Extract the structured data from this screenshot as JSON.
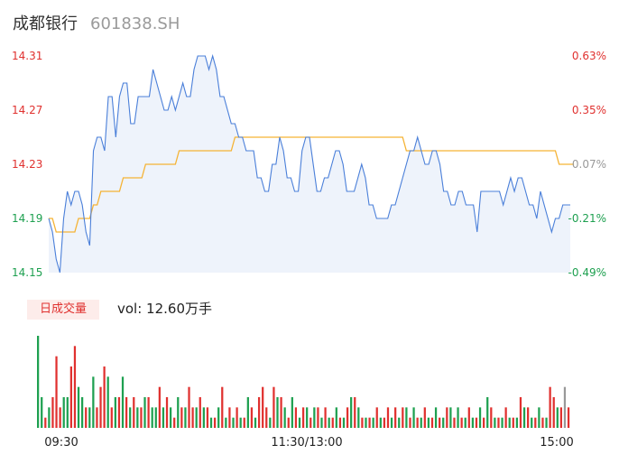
{
  "header": {
    "name": "成都银行",
    "code": "601838.SH"
  },
  "volume_panel": {
    "badge": "日成交量",
    "label": "vol: 12.60万手"
  },
  "colors": {
    "price": "#4a7fd9",
    "avg": "#f5b335",
    "up": "#e0312f",
    "down": "#1ea050",
    "neutral": "#999999",
    "area": "#eef3fb"
  },
  "chart_data": [
    {
      "type": "line",
      "name": "intraday-price",
      "ylim": [
        14.15,
        14.31
      ],
      "y_ticks": [
        "14.31",
        "14.27",
        "14.23",
        "14.19",
        "14.15"
      ],
      "pct_ticks": [
        "0.63%",
        "0.35%",
        "0.07%",
        "-0.21%",
        "-0.49%"
      ],
      "x_ticks": [
        "09:30",
        "11:30/13:00",
        "15:00"
      ],
      "prev_close": 14.22,
      "series": [
        {
          "key": "price",
          "values": [
            14.19,
            14.18,
            14.16,
            14.15,
            14.19,
            14.21,
            14.2,
            14.21,
            14.21,
            14.2,
            14.18,
            14.17,
            14.24,
            14.25,
            14.25,
            14.24,
            14.28,
            14.28,
            14.25,
            14.28,
            14.29,
            14.29,
            14.26,
            14.26,
            14.28,
            14.28,
            14.28,
            14.28,
            14.3,
            14.29,
            14.28,
            14.27,
            14.27,
            14.28,
            14.27,
            14.28,
            14.29,
            14.28,
            14.28,
            14.3,
            14.31,
            14.31,
            14.31,
            14.3,
            14.31,
            14.3,
            14.28,
            14.28,
            14.27,
            14.26,
            14.26,
            14.25,
            14.25,
            14.24,
            14.24,
            14.24,
            14.22,
            14.22,
            14.21,
            14.21,
            14.23,
            14.23,
            14.25,
            14.24,
            14.22,
            14.22,
            14.21,
            14.21,
            14.24,
            14.25,
            14.25,
            14.23,
            14.21,
            14.21,
            14.22,
            14.22,
            14.23,
            14.24,
            14.24,
            14.23,
            14.21,
            14.21,
            14.21,
            14.22,
            14.23,
            14.22,
            14.2,
            14.2,
            14.19,
            14.19,
            14.19,
            14.19,
            14.2,
            14.2,
            14.21,
            14.22,
            14.23,
            14.24,
            14.24,
            14.25,
            14.24,
            14.23,
            14.23,
            14.24,
            14.24,
            14.23,
            14.21,
            14.21,
            14.2,
            14.2,
            14.21,
            14.21,
            14.2,
            14.2,
            14.2,
            14.18,
            14.21,
            14.21,
            14.21,
            14.21,
            14.21,
            14.21,
            14.2,
            14.21,
            14.22,
            14.21,
            14.22,
            14.22,
            14.21,
            14.2,
            14.2,
            14.19,
            14.21,
            14.2,
            14.19,
            14.18,
            14.19,
            14.19,
            14.2,
            14.2,
            14.2
          ]
        },
        {
          "key": "avg",
          "values": [
            14.19,
            14.19,
            14.18,
            14.18,
            14.18,
            14.18,
            14.18,
            14.18,
            14.19,
            14.19,
            14.19,
            14.19,
            14.2,
            14.2,
            14.21,
            14.21,
            14.21,
            14.21,
            14.21,
            14.21,
            14.22,
            14.22,
            14.22,
            14.22,
            14.22,
            14.22,
            14.23,
            14.23,
            14.23,
            14.23,
            14.23,
            14.23,
            14.23,
            14.23,
            14.23,
            14.24,
            14.24,
            14.24,
            14.24,
            14.24,
            14.24,
            14.24,
            14.24,
            14.24,
            14.24,
            14.24,
            14.24,
            14.24,
            14.24,
            14.24,
            14.25,
            14.25,
            14.25,
            14.25,
            14.25,
            14.25,
            14.25,
            14.25,
            14.25,
            14.25,
            14.25,
            14.25,
            14.25,
            14.25,
            14.25,
            14.25,
            14.25,
            14.25,
            14.25,
            14.25,
            14.25,
            14.25,
            14.25,
            14.25,
            14.25,
            14.25,
            14.25,
            14.25,
            14.25,
            14.25,
            14.25,
            14.25,
            14.25,
            14.25,
            14.25,
            14.25,
            14.25,
            14.25,
            14.25,
            14.25,
            14.25,
            14.25,
            14.25,
            14.25,
            14.25,
            14.25,
            14.24,
            14.24,
            14.24,
            14.24,
            14.24,
            14.24,
            14.24,
            14.24,
            14.24,
            14.24,
            14.24,
            14.24,
            14.24,
            14.24,
            14.24,
            14.24,
            14.24,
            14.24,
            14.24,
            14.24,
            14.24,
            14.24,
            14.24,
            14.24,
            14.24,
            14.24,
            14.24,
            14.24,
            14.24,
            14.24,
            14.24,
            14.24,
            14.24,
            14.24,
            14.24,
            14.24,
            14.24,
            14.24,
            14.24,
            14.24,
            14.24,
            14.23,
            14.23,
            14.23,
            14.23,
            14.23
          ]
        }
      ]
    },
    {
      "type": "bar",
      "name": "volume",
      "values": [
        9,
        3,
        1,
        2,
        3,
        7,
        2,
        3,
        3,
        6,
        8,
        4,
        3,
        2,
        2,
        5,
        2,
        4,
        6,
        5,
        2,
        3,
        3,
        5,
        3,
        2,
        3,
        2,
        2,
        3,
        3,
        2,
        2,
        4,
        2,
        3,
        2,
        1,
        3,
        2,
        2,
        4,
        2,
        2,
        3,
        2,
        2,
        1,
        1,
        2,
        4,
        1,
        2,
        1,
        2,
        1,
        1,
        3,
        2,
        1,
        3,
        4,
        2,
        1,
        4,
        3,
        3,
        2,
        1,
        3,
        2,
        1,
        2,
        2,
        1,
        2,
        2,
        1,
        2,
        1,
        1,
        2,
        1,
        1,
        2,
        3,
        3,
        2,
        1,
        1,
        1,
        1,
        2,
        1,
        1,
        2,
        1,
        2,
        1,
        2,
        2,
        1,
        2,
        1,
        1,
        2,
        1,
        1,
        2,
        1,
        1,
        2,
        2,
        1,
        2,
        1,
        1,
        2,
        1,
        1,
        2,
        1,
        3,
        2,
        1,
        1,
        1,
        2,
        1,
        1,
        1,
        3,
        2,
        2,
        1,
        1,
        2,
        1,
        1,
        4,
        3,
        2,
        2,
        4,
        2
      ],
      "directions": [
        "d",
        "d",
        "u",
        "d",
        "u",
        "u",
        "u",
        "d",
        "d",
        "u",
        "u",
        "d",
        "d",
        "u",
        "d",
        "d",
        "u",
        "u",
        "u",
        "d",
        "u",
        "d",
        "u",
        "d",
        "u",
        "d",
        "u",
        "d",
        "u",
        "d",
        "u",
        "d",
        "d",
        "u",
        "d",
        "u",
        "d",
        "u",
        "d",
        "u",
        "d",
        "u",
        "u",
        "d",
        "u",
        "d",
        "u",
        "d",
        "u",
        "d",
        "u",
        "d",
        "u",
        "d",
        "u",
        "d",
        "u",
        "d",
        "u",
        "d",
        "u",
        "u",
        "u",
        "d",
        "u",
        "d",
        "u",
        "d",
        "u",
        "d",
        "u",
        "d",
        "u",
        "d",
        "u",
        "d",
        "u",
        "d",
        "u",
        "d",
        "u",
        "d",
        "u",
        "d",
        "u",
        "d",
        "u",
        "d",
        "u",
        "d",
        "u",
        "d",
        "u",
        "d",
        "u",
        "u",
        "d",
        "u",
        "d",
        "u",
        "d",
        "u",
        "d",
        "u",
        "d",
        "u",
        "d",
        "u",
        "d",
        "u",
        "d",
        "u",
        "d",
        "u",
        "d",
        "u",
        "d",
        "u",
        "d",
        "u",
        "d",
        "u",
        "d",
        "u",
        "d",
        "u",
        "d",
        "u",
        "d",
        "u",
        "d",
        "u",
        "d",
        "u",
        "d",
        "u",
        "d",
        "u",
        "d",
        "u",
        "u",
        "d",
        "u",
        "n",
        "u"
      ]
    }
  ]
}
